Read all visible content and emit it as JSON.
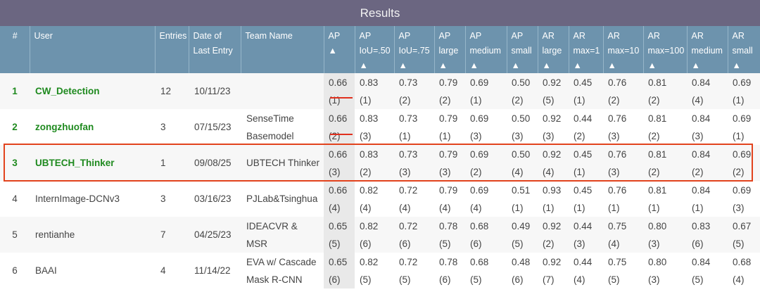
{
  "title": "Results",
  "headers": [
    "#",
    "User",
    "Entries",
    "Date of Last Entry",
    "Team Name",
    "AP ▲",
    "AP IoU=.50 ▲",
    "AP IoU=.75 ▲",
    "AP large ▲",
    "AP medium ▲",
    "AP small ▲",
    "AR large ▲",
    "AR max=1 ▲",
    "AR max=10 ▲",
    "AR max=100 ▲",
    "AR medium ▲",
    "AR small ▲"
  ],
  "rows": [
    {
      "rank": "1",
      "user": "CW_Detection",
      "entries": "12",
      "date": "10/11/23",
      "team": "",
      "m": [
        [
          "0.66",
          "(1)"
        ],
        [
          "0.83",
          "(1)"
        ],
        [
          "0.73",
          "(2)"
        ],
        [
          "0.79",
          "(2)"
        ],
        [
          "0.69",
          "(1)"
        ],
        [
          "0.50",
          "(2)"
        ],
        [
          "0.92",
          "(5)"
        ],
        [
          "0.45",
          "(1)"
        ],
        [
          "0.76",
          "(2)"
        ],
        [
          "0.81",
          "(2)"
        ],
        [
          "0.84",
          "(4)"
        ],
        [
          "0.69",
          "(1)"
        ]
      ]
    },
    {
      "rank": "2",
      "user": "zongzhuofan",
      "entries": "3",
      "date": "07/15/23",
      "team": "SenseTime Basemodel",
      "m": [
        [
          "0.66",
          "(2)"
        ],
        [
          "0.83",
          "(3)"
        ],
        [
          "0.73",
          "(1)"
        ],
        [
          "0.79",
          "(1)"
        ],
        [
          "0.69",
          "(3)"
        ],
        [
          "0.50",
          "(3)"
        ],
        [
          "0.92",
          "(3)"
        ],
        [
          "0.44",
          "(2)"
        ],
        [
          "0.76",
          "(3)"
        ],
        [
          "0.81",
          "(2)"
        ],
        [
          "0.84",
          "(3)"
        ],
        [
          "0.69",
          "(1)"
        ]
      ]
    },
    {
      "rank": "3",
      "user": "UBTECH_Thinker",
      "entries": "1",
      "date": "09/08/25",
      "team": "UBTECH Thinker",
      "m": [
        [
          "0.66",
          "(3)"
        ],
        [
          "0.83",
          "(2)"
        ],
        [
          "0.73",
          "(3)"
        ],
        [
          "0.79",
          "(3)"
        ],
        [
          "0.69",
          "(2)"
        ],
        [
          "0.50",
          "(4)"
        ],
        [
          "0.92",
          "(4)"
        ],
        [
          "0.45",
          "(1)"
        ],
        [
          "0.76",
          "(3)"
        ],
        [
          "0.81",
          "(2)"
        ],
        [
          "0.84",
          "(2)"
        ],
        [
          "0.69",
          "(2)"
        ]
      ]
    },
    {
      "rank": "4",
      "user": "InternImage-DCNv3",
      "entries": "3",
      "date": "03/16/23",
      "team": "PJLab&Tsinghua",
      "m": [
        [
          "0.66",
          "(4)"
        ],
        [
          "0.82",
          "(4)"
        ],
        [
          "0.72",
          "(4)"
        ],
        [
          "0.79",
          "(4)"
        ],
        [
          "0.69",
          "(4)"
        ],
        [
          "0.51",
          "(1)"
        ],
        [
          "0.93",
          "(1)"
        ],
        [
          "0.45",
          "(1)"
        ],
        [
          "0.76",
          "(1)"
        ],
        [
          "0.81",
          "(1)"
        ],
        [
          "0.84",
          "(1)"
        ],
        [
          "0.69",
          "(3)"
        ]
      ]
    },
    {
      "rank": "5",
      "user": "rentianhe",
      "entries": "7",
      "date": "04/25/23",
      "team": "IDEACVR & MSR",
      "m": [
        [
          "0.65",
          "(5)"
        ],
        [
          "0.82",
          "(6)"
        ],
        [
          "0.72",
          "(6)"
        ],
        [
          "0.78",
          "(5)"
        ],
        [
          "0.68",
          "(6)"
        ],
        [
          "0.49",
          "(5)"
        ],
        [
          "0.92",
          "(2)"
        ],
        [
          "0.44",
          "(3)"
        ],
        [
          "0.75",
          "(4)"
        ],
        [
          "0.80",
          "(3)"
        ],
        [
          "0.83",
          "(6)"
        ],
        [
          "0.67",
          "(5)"
        ]
      ]
    },
    {
      "rank": "6",
      "user": "BAAI",
      "entries": "4",
      "date": "11/14/22",
      "team": "EVA w/ Cascade Mask R-CNN",
      "m": [
        [
          "0.65",
          "(6)"
        ],
        [
          "0.82",
          "(5)"
        ],
        [
          "0.72",
          "(5)"
        ],
        [
          "0.78",
          "(6)"
        ],
        [
          "0.68",
          "(5)"
        ],
        [
          "0.48",
          "(6)"
        ],
        [
          "0.92",
          "(7)"
        ],
        [
          "0.44",
          "(4)"
        ],
        [
          "0.75",
          "(5)"
        ],
        [
          "0.80",
          "(3)"
        ],
        [
          "0.84",
          "(5)"
        ],
        [
          "0.68",
          "(4)"
        ]
      ]
    }
  ]
}
